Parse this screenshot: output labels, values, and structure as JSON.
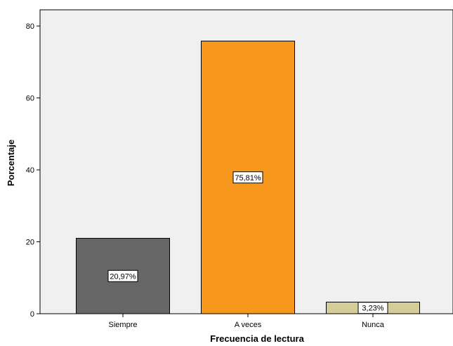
{
  "chart_data": {
    "type": "bar",
    "title": "",
    "xlabel": "Frecuencia de lectura",
    "ylabel": "Porcentaje",
    "categories": [
      "Siempre",
      "A veces",
      "Nunca"
    ],
    "values": [
      20.97,
      75.81,
      3.23
    ],
    "data_labels": [
      "20,97%",
      "75,81%",
      "3,23%"
    ],
    "colors": [
      "#666666",
      "#F7981D",
      "#D4CD9A"
    ],
    "ylim": [
      0,
      80
    ],
    "yticks": [
      0,
      20,
      40,
      60,
      80
    ],
    "plot_background": "#F0F0F0",
    "grid": false,
    "legend": "none"
  }
}
